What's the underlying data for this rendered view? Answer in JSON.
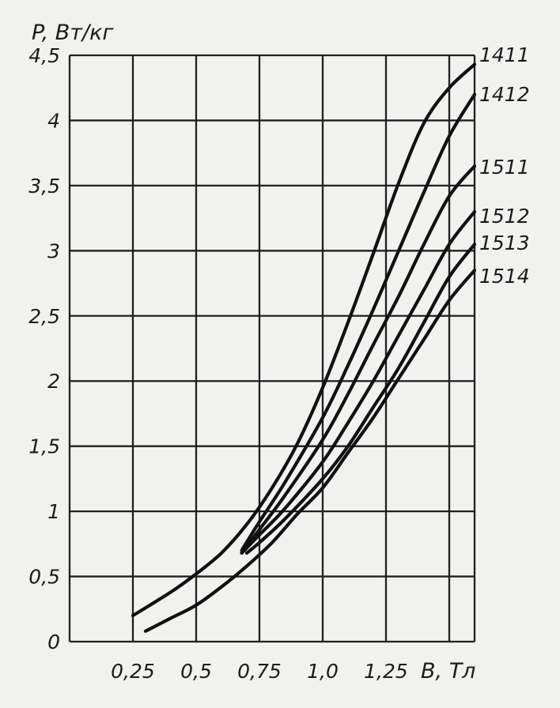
{
  "chart_data": {
    "type": "line",
    "title": "",
    "ylabel": "P, Вт/кг",
    "xlabel": "B, Тл",
    "xlim": [
      0.0,
      1.6
    ],
    "ylim": [
      0,
      4.5
    ],
    "grid": true,
    "x_ticks": [
      "0,25",
      "0,5",
      "0,75",
      "1,0",
      "1,25"
    ],
    "x_tick_values": [
      0.25,
      0.5,
      0.75,
      1.0,
      1.25
    ],
    "y_ticks": [
      "0",
      "0,5",
      "1",
      "1,5",
      "2",
      "2,5",
      "3",
      "3,5",
      "4",
      "4,5"
    ],
    "y_tick_values": [
      0,
      0.5,
      1,
      1.5,
      2,
      2.5,
      3,
      3.5,
      4,
      4.5
    ],
    "series": [
      {
        "name": "1411",
        "x": [
          0.25,
          0.4,
          0.5,
          0.6,
          0.7,
          0.8,
          0.9,
          1.0,
          1.1,
          1.2,
          1.3,
          1.4,
          1.5,
          1.6
        ],
        "y": [
          0.2,
          0.38,
          0.52,
          0.68,
          0.9,
          1.18,
          1.52,
          1.95,
          2.45,
          2.98,
          3.52,
          3.98,
          4.25,
          4.43
        ]
      },
      {
        "name": "1412",
        "x": [
          0.68,
          0.75,
          0.85,
          1.0,
          1.1,
          1.2,
          1.3,
          1.4,
          1.5,
          1.6
        ],
        "y": [
          0.7,
          0.92,
          1.22,
          1.72,
          2.12,
          2.55,
          3.0,
          3.45,
          3.88,
          4.2
        ]
      },
      {
        "name": "1511",
        "x": [
          0.68,
          0.75,
          0.85,
          1.0,
          1.1,
          1.2,
          1.3,
          1.4,
          1.5,
          1.6
        ],
        "y": [
          0.68,
          0.86,
          1.12,
          1.55,
          1.9,
          2.28,
          2.65,
          3.05,
          3.42,
          3.65
        ]
      },
      {
        "name": "1512",
        "x": [
          0.68,
          0.75,
          0.85,
          1.0,
          1.1,
          1.2,
          1.3,
          1.4,
          1.5,
          1.6
        ],
        "y": [
          0.68,
          0.82,
          1.02,
          1.38,
          1.68,
          2.0,
          2.35,
          2.7,
          3.05,
          3.3
        ]
      },
      {
        "name": "1513",
        "x": [
          0.7,
          0.75,
          0.85,
          1.0,
          1.1,
          1.2,
          1.3,
          1.4,
          1.5,
          1.6
        ],
        "y": [
          0.68,
          0.76,
          0.94,
          1.25,
          1.5,
          1.8,
          2.1,
          2.45,
          2.8,
          3.05
        ]
      },
      {
        "name": "1514",
        "x": [
          0.3,
          0.4,
          0.5,
          0.6,
          0.7,
          0.8,
          0.9,
          1.0,
          1.1,
          1.2,
          1.3,
          1.4,
          1.5,
          1.6
        ],
        "y": [
          0.08,
          0.18,
          0.28,
          0.42,
          0.58,
          0.76,
          0.98,
          1.18,
          1.45,
          1.72,
          2.02,
          2.32,
          2.62,
          2.85
        ]
      }
    ]
  }
}
